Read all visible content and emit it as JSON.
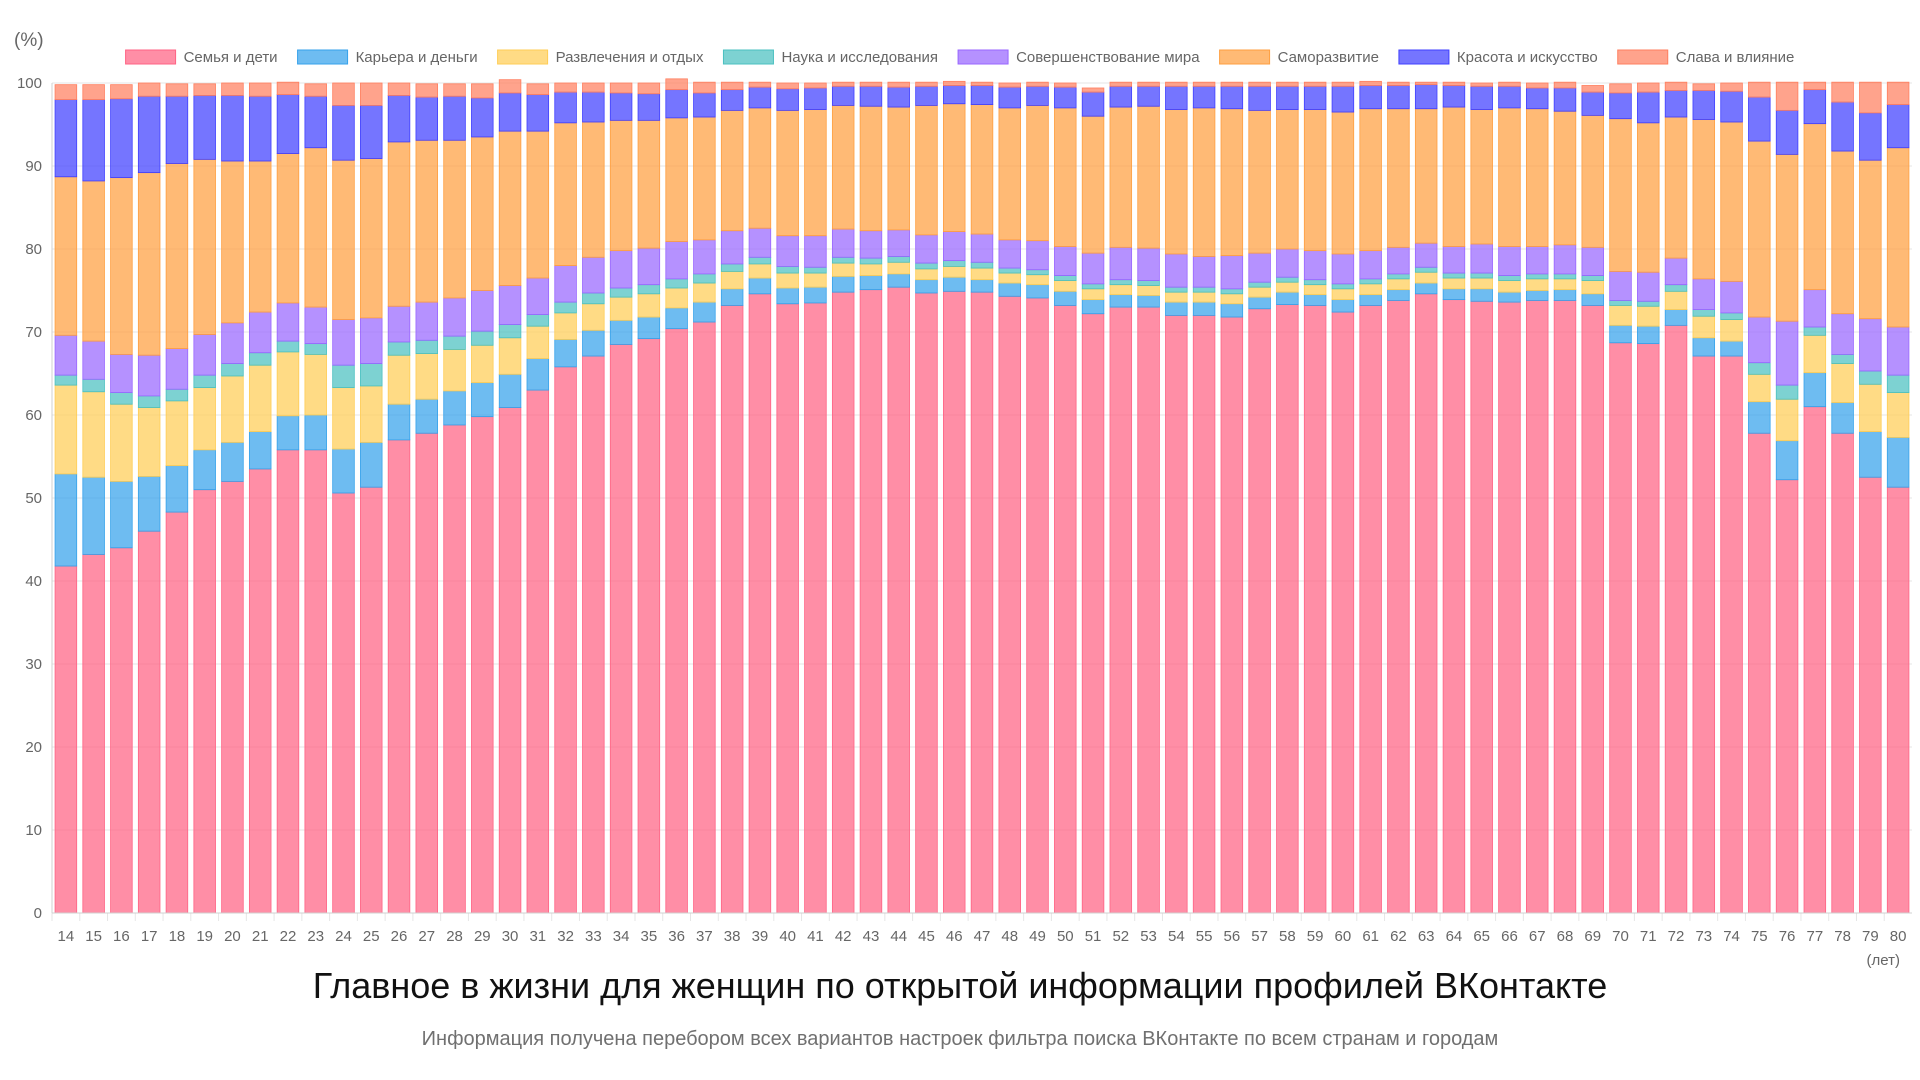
{
  "chart_data": {
    "type": "bar",
    "stacked": true,
    "title": "Главное в жизни для женщин по открытой информации профилей ВКонтакте",
    "subtitle": "Информация получена перебором всех вариантов настроек фильтра поиска ВКонтакте по всем странам и городам",
    "y_unit_label": "(%)",
    "x_unit_label": "(лет)",
    "ylim": [
      0,
      100
    ],
    "yticks": [
      0,
      10,
      20,
      30,
      40,
      50,
      60,
      70,
      80,
      90,
      100
    ],
    "grid": true,
    "legend_position": "top",
    "categories": [
      "14",
      "15",
      "16",
      "17",
      "18",
      "19",
      "20",
      "21",
      "22",
      "23",
      "24",
      "25",
      "26",
      "27",
      "28",
      "29",
      "30",
      "31",
      "32",
      "33",
      "34",
      "35",
      "36",
      "37",
      "38",
      "39",
      "40",
      "41",
      "42",
      "43",
      "44",
      "45",
      "46",
      "47",
      "48",
      "49",
      "50",
      "51",
      "52",
      "53",
      "54",
      "55",
      "56",
      "57",
      "58",
      "59",
      "60",
      "61",
      "62",
      "63",
      "64",
      "65",
      "66",
      "67",
      "68",
      "69",
      "70",
      "71",
      "72",
      "73",
      "74",
      "75",
      "76",
      "77",
      "78",
      "79",
      "80"
    ],
    "series": [
      {
        "name": "Семья и дети",
        "color": "#ff6384",
        "values": [
          41.8,
          43.2,
          44.0,
          46.0,
          48.3,
          51.0,
          52.0,
          53.5,
          55.8,
          55.8,
          50.6,
          51.3,
          57.0,
          57.8,
          58.8,
          59.8,
          60.9,
          63.0,
          65.8,
          67.1,
          68.5,
          69.2,
          70.4,
          71.2,
          73.2,
          74.6,
          73.4,
          73.5,
          74.8,
          75.1,
          75.4,
          74.7,
          74.9,
          74.8,
          74.3,
          74.1,
          73.2,
          72.2,
          73.0,
          73.0,
          72.0,
          72.0,
          71.8,
          72.8,
          73.3,
          73.2,
          72.4,
          73.2,
          73.8,
          74.6,
          73.9,
          73.7,
          73.6,
          73.8,
          73.8,
          73.2,
          68.7,
          68.6,
          70.8,
          67.1,
          67.1,
          57.8,
          52.2,
          61.0,
          57.8,
          52.5,
          51.3
        ]
      },
      {
        "name": "Карьера и деньги",
        "color": "#36a2eb",
        "values": [
          11.1,
          9.3,
          8.0,
          6.6,
          5.6,
          4.8,
          4.7,
          4.5,
          4.1,
          4.2,
          5.3,
          5.4,
          4.3,
          4.1,
          4.1,
          4.1,
          4.0,
          3.8,
          3.3,
          3.1,
          2.9,
          2.6,
          2.5,
          2.4,
          2.0,
          1.9,
          1.9,
          1.9,
          1.9,
          1.7,
          1.6,
          1.6,
          1.7,
          1.5,
          1.6,
          1.6,
          1.7,
          1.7,
          1.5,
          1.4,
          1.6,
          1.6,
          1.6,
          1.4,
          1.5,
          1.3,
          1.5,
          1.3,
          1.3,
          1.3,
          1.3,
          1.5,
          1.2,
          1.2,
          1.3,
          1.4,
          2.1,
          2.1,
          1.9,
          2.2,
          1.8,
          3.8,
          4.7,
          4.1,
          3.7,
          5.5,
          6.0
        ]
      },
      {
        "name": "Развлечения и отдых",
        "color": "#ffcd56",
        "values": [
          10.7,
          10.3,
          9.3,
          8.3,
          7.8,
          7.5,
          8.0,
          8.0,
          7.7,
          7.3,
          7.4,
          6.8,
          5.9,
          5.5,
          5.0,
          4.5,
          4.4,
          3.9,
          3.2,
          3.2,
          2.8,
          2.8,
          2.4,
          2.3,
          2.1,
          1.7,
          1.8,
          1.7,
          1.6,
          1.4,
          1.4,
          1.3,
          1.3,
          1.4,
          1.2,
          1.2,
          1.3,
          1.3,
          1.2,
          1.2,
          1.2,
          1.2,
          1.2,
          1.2,
          1.2,
          1.2,
          1.3,
          1.3,
          1.3,
          1.3,
          1.3,
          1.3,
          1.4,
          1.4,
          1.3,
          1.6,
          2.4,
          2.4,
          2.2,
          2.6,
          2.6,
          3.3,
          5.0,
          4.5,
          4.7,
          5.7,
          5.4
        ]
      },
      {
        "name": "Наука и исследования",
        "color": "#4bc0c0",
        "values": [
          1.2,
          1.5,
          1.4,
          1.4,
          1.4,
          1.5,
          1.5,
          1.5,
          1.3,
          1.3,
          2.7,
          2.7,
          1.6,
          1.6,
          1.6,
          1.7,
          1.6,
          1.4,
          1.3,
          1.3,
          1.1,
          1.1,
          1.1,
          1.1,
          0.9,
          0.8,
          0.8,
          0.7,
          0.7,
          0.7,
          0.7,
          0.7,
          0.7,
          0.7,
          0.6,
          0.6,
          0.6,
          0.6,
          0.6,
          0.6,
          0.6,
          0.6,
          0.6,
          0.6,
          0.6,
          0.6,
          0.6,
          0.6,
          0.6,
          0.6,
          0.6,
          0.6,
          0.6,
          0.6,
          0.6,
          0.6,
          0.6,
          0.6,
          0.8,
          0.8,
          0.8,
          1.4,
          1.7,
          1.0,
          1.1,
          1.6,
          2.1
        ]
      },
      {
        "name": "Совершенствование мира",
        "color": "#9966ff",
        "values": [
          4.8,
          4.6,
          4.6,
          4.9,
          4.9,
          4.9,
          4.9,
          4.9,
          4.6,
          4.4,
          5.5,
          5.5,
          4.3,
          4.6,
          4.6,
          4.9,
          4.7,
          4.4,
          4.4,
          4.3,
          4.5,
          4.4,
          4.5,
          4.1,
          4.0,
          3.5,
          3.7,
          3.8,
          3.4,
          3.3,
          3.2,
          3.4,
          3.5,
          3.4,
          3.4,
          3.5,
          3.5,
          3.7,
          3.9,
          3.9,
          4.0,
          3.7,
          4.0,
          3.5,
          3.4,
          3.5,
          3.6,
          3.4,
          3.2,
          2.9,
          3.2,
          3.5,
          3.5,
          3.3,
          3.5,
          3.4,
          3.5,
          3.5,
          3.2,
          3.7,
          3.8,
          5.5,
          7.7,
          4.5,
          4.9,
          6.3,
          5.8
        ]
      },
      {
        "name": "Саморазвитие",
        "color": "#ff9f40",
        "values": [
          19.1,
          19.3,
          21.3,
          22.0,
          22.3,
          21.1,
          19.5,
          18.2,
          18.0,
          19.2,
          19.2,
          19.2,
          19.8,
          19.5,
          19.0,
          18.5,
          18.6,
          17.7,
          17.2,
          16.3,
          15.7,
          15.4,
          14.9,
          14.8,
          14.5,
          14.5,
          15.1,
          15.2,
          14.9,
          15.0,
          14.8,
          15.6,
          15.4,
          15.6,
          15.9,
          16.3,
          16.7,
          16.5,
          16.9,
          17.1,
          17.4,
          17.9,
          17.7,
          17.2,
          16.8,
          17.0,
          17.1,
          17.1,
          16.7,
          16.2,
          16.8,
          16.2,
          16.7,
          16.6,
          16.1,
          15.9,
          18.4,
          18.0,
          17.0,
          19.2,
          19.2,
          21.2,
          20.1,
          20.0,
          19.6,
          19.1,
          21.6
        ]
      },
      {
        "name": "Красота и искусство",
        "color": "#4040ff",
        "values": [
          9.3,
          9.8,
          9.5,
          9.2,
          8.1,
          7.7,
          7.9,
          7.8,
          7.1,
          6.2,
          6.6,
          6.4,
          5.6,
          5.2,
          5.3,
          4.7,
          4.6,
          4.4,
          3.7,
          3.6,
          3.3,
          3.2,
          3.4,
          2.9,
          2.5,
          2.5,
          2.6,
          2.6,
          2.3,
          2.4,
          2.4,
          2.3,
          2.2,
          2.3,
          2.5,
          2.3,
          2.5,
          2.9,
          2.5,
          2.4,
          2.8,
          2.6,
          2.7,
          2.9,
          2.8,
          2.8,
          3.1,
          2.8,
          2.8,
          2.9,
          2.6,
          2.8,
          2.6,
          2.5,
          2.8,
          2.8,
          3.1,
          3.7,
          3.2,
          3.5,
          3.7,
          5.3,
          5.3,
          4.1,
          5.9,
          5.7,
          5.2
        ]
      },
      {
        "name": "Слава и влияние",
        "color": "#ff7f5f",
        "values": [
          1.8,
          1.8,
          1.7,
          1.6,
          1.5,
          1.4,
          1.5,
          1.6,
          1.5,
          1.5,
          2.7,
          2.7,
          1.5,
          1.6,
          1.5,
          1.7,
          1.6,
          1.3,
          1.1,
          1.1,
          1.2,
          1.3,
          1.3,
          1.3,
          0.9,
          0.6,
          0.7,
          0.6,
          0.5,
          0.5,
          0.6,
          0.5,
          0.5,
          0.4,
          0.5,
          0.5,
          0.5,
          0.5,
          0.5,
          0.5,
          0.5,
          0.5,
          0.5,
          0.5,
          0.5,
          0.5,
          0.5,
          0.5,
          0.4,
          0.3,
          0.4,
          0.4,
          0.5,
          0.6,
          0.7,
          0.8,
          1.1,
          1.1,
          1.0,
          0.8,
          1.0,
          1.8,
          3.4,
          0.9,
          2.4,
          3.7,
          2.7
        ]
      }
    ]
  }
}
